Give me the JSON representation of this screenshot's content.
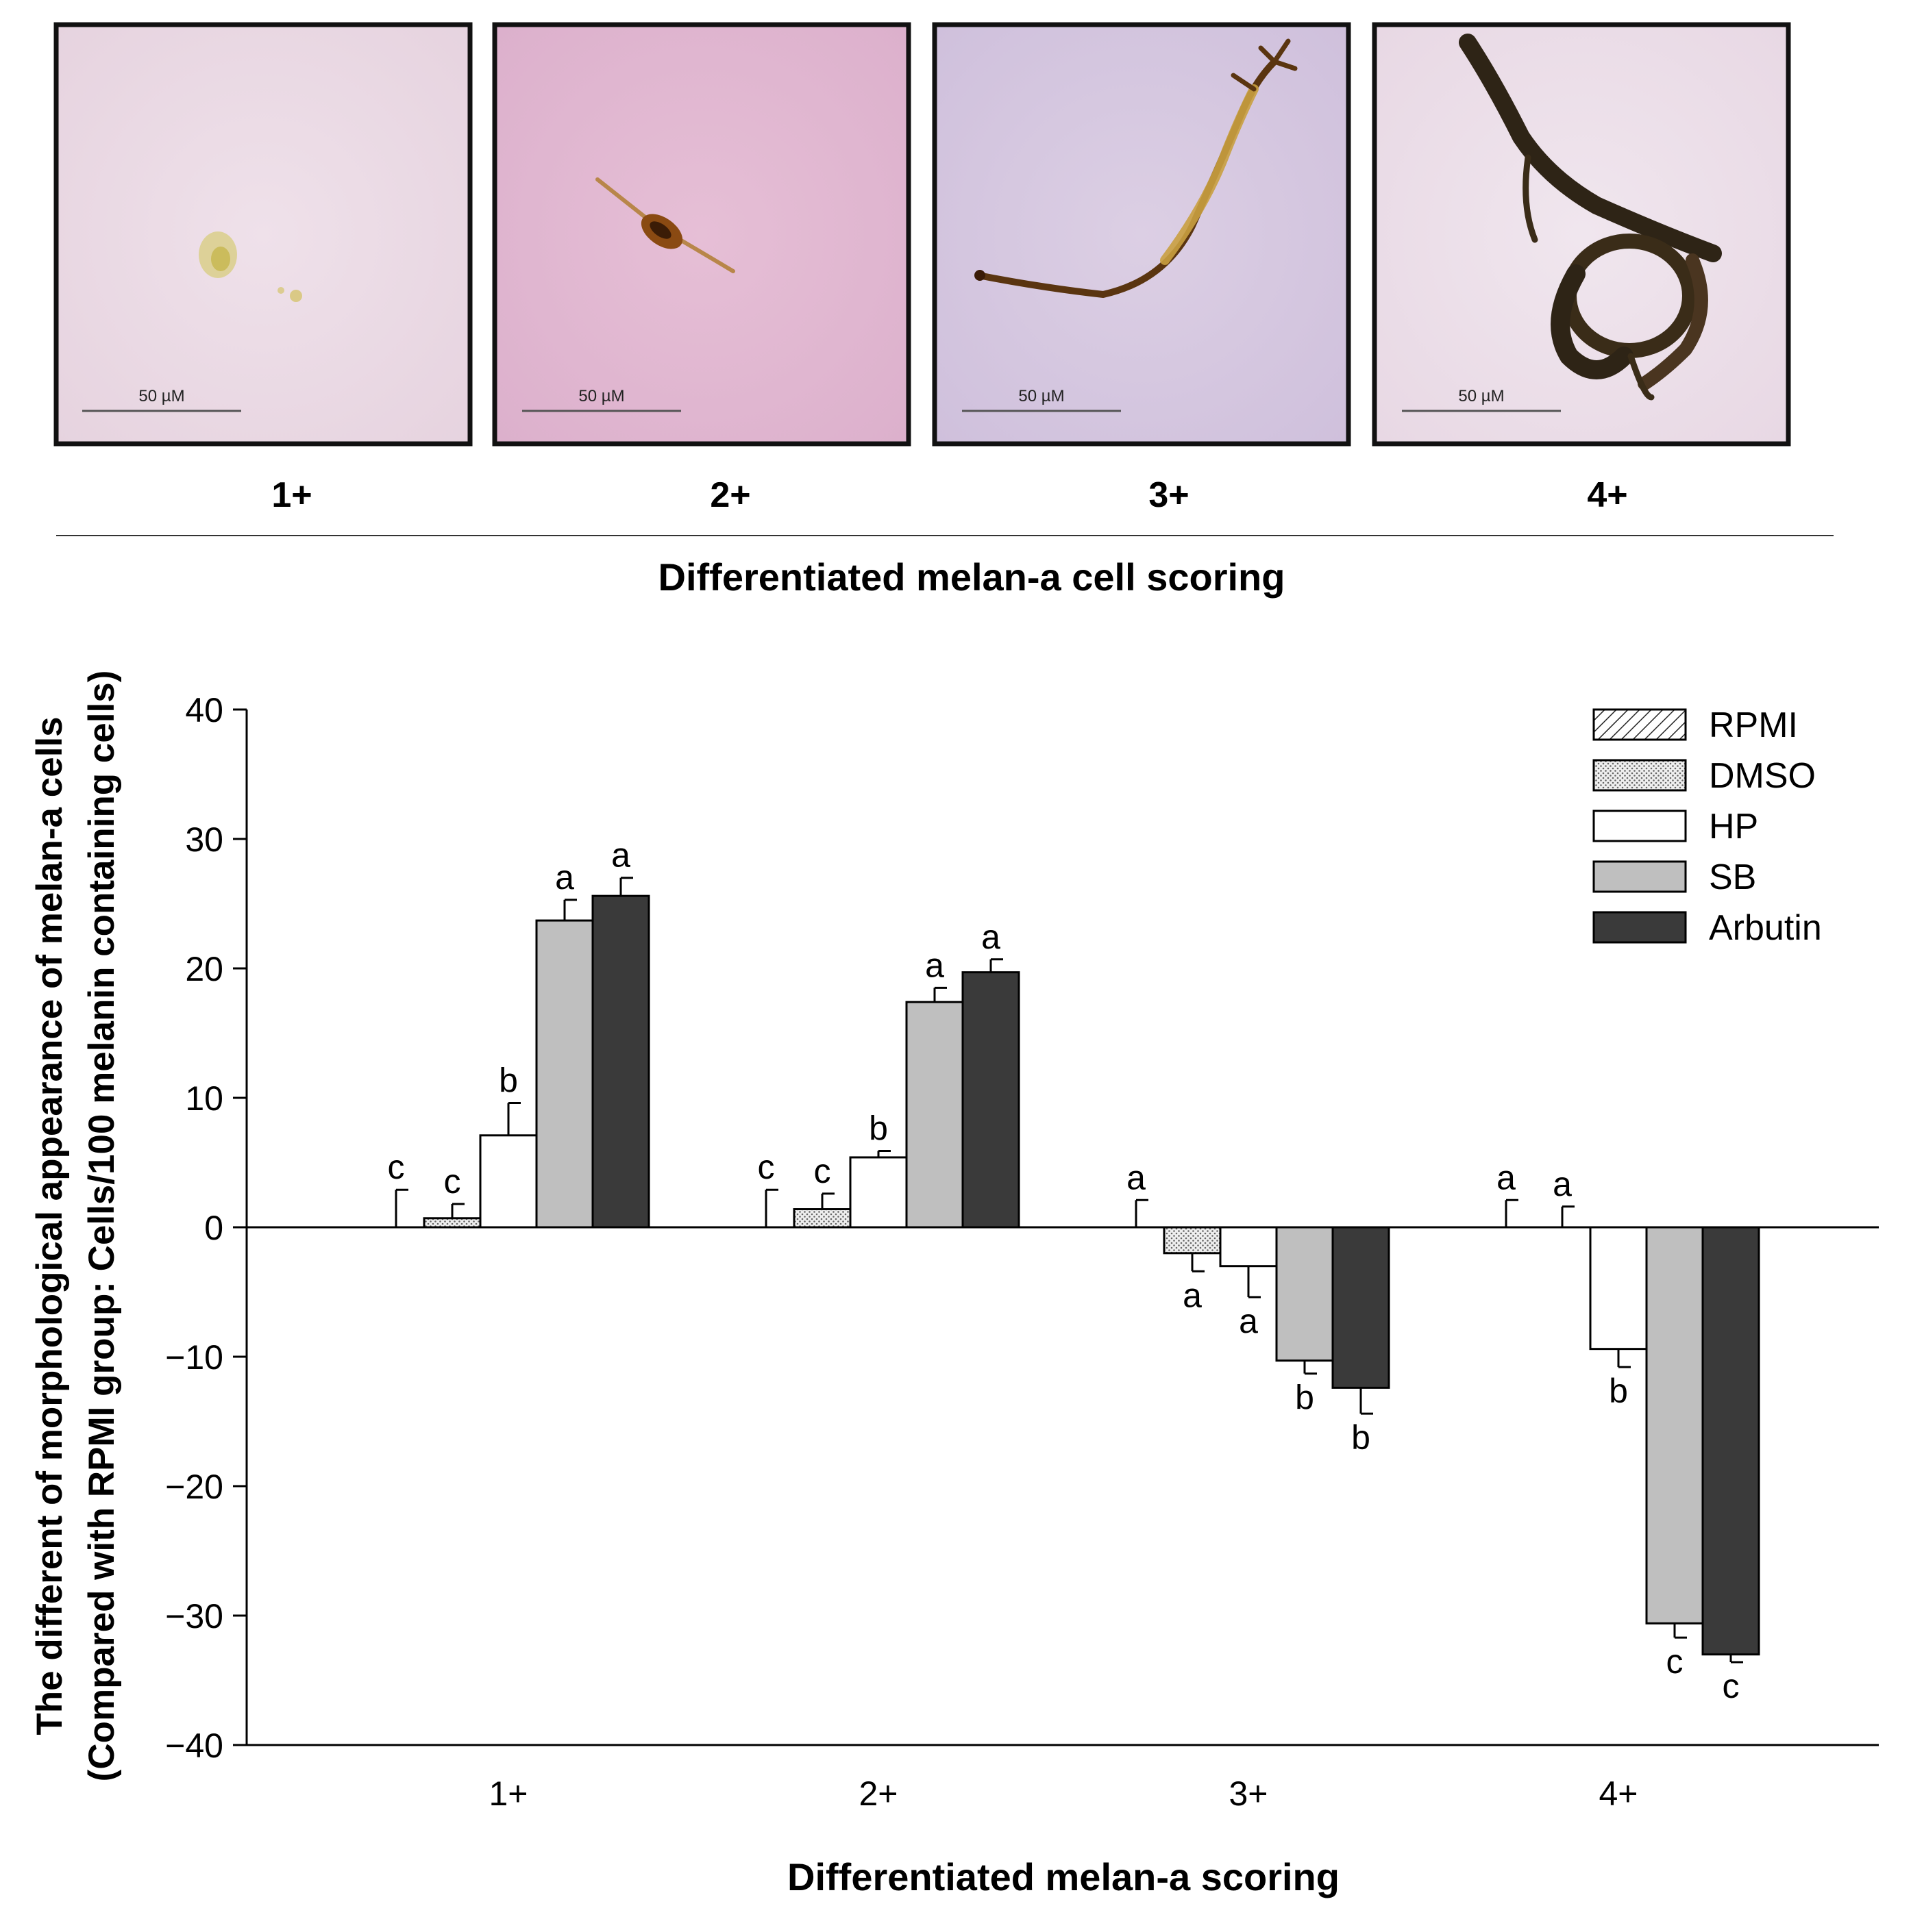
{
  "micrographs": {
    "title": "Differentiated melan-a cell scoring",
    "scale_bar_label": "50 µM",
    "panels": [
      {
        "label": "1+"
      },
      {
        "label": "2+"
      },
      {
        "label": "3+"
      },
      {
        "label": "4+"
      }
    ]
  },
  "chart_data": {
    "type": "bar",
    "title": "",
    "xlabel": "Differentiated melan-a scoring",
    "ylabel_lines": [
      "The different of morphological appearance of melan-a cells",
      "(Compared with RPMI group: Cells/100 melanin containing cells)"
    ],
    "categories": [
      "1+",
      "2+",
      "3+",
      "4+"
    ],
    "ylim": [
      -40,
      40
    ],
    "yticks": [
      -40,
      -30,
      -20,
      -10,
      0,
      10,
      20,
      30,
      40
    ],
    "legend_position": "top-right",
    "series": [
      {
        "name": "RPMI",
        "pattern": "diagonal-hatch",
        "color": "#ffffff",
        "values": [
          0,
          0,
          0,
          0
        ],
        "errors": [
          2.9,
          2.9,
          2.1,
          2.1
        ],
        "letters": [
          "c",
          "c",
          "a",
          "a"
        ]
      },
      {
        "name": "DMSO",
        "pattern": "dots",
        "color": "#e6e6e6",
        "values": [
          0.7,
          1.4,
          -2.0,
          0
        ],
        "errors": [
          1.1,
          1.2,
          1.4,
          1.6
        ],
        "letters": [
          "c",
          "c",
          "a",
          "a"
        ]
      },
      {
        "name": "HP",
        "pattern": "solid",
        "color": "#ffffff",
        "values": [
          7.1,
          5.4,
          -3.0,
          -9.4
        ],
        "errors": [
          2.5,
          0.5,
          2.4,
          1.4
        ],
        "letters": [
          "b",
          "b",
          "a",
          "b"
        ]
      },
      {
        "name": "SB",
        "pattern": "solid",
        "color": "#bfbfbf",
        "values": [
          23.7,
          17.4,
          -10.3,
          -30.6
        ],
        "errors": [
          1.6,
          1.1,
          1.0,
          1.1
        ],
        "letters": [
          "a",
          "a",
          "b",
          "c"
        ]
      },
      {
        "name": "Arbutin",
        "pattern": "solid",
        "color": "#3a3a3a",
        "values": [
          25.6,
          19.7,
          -12.4,
          -33.0
        ],
        "errors": [
          1.4,
          1.0,
          2.0,
          0.6
        ],
        "letters": [
          "a",
          "a",
          "b",
          "c"
        ]
      }
    ]
  }
}
